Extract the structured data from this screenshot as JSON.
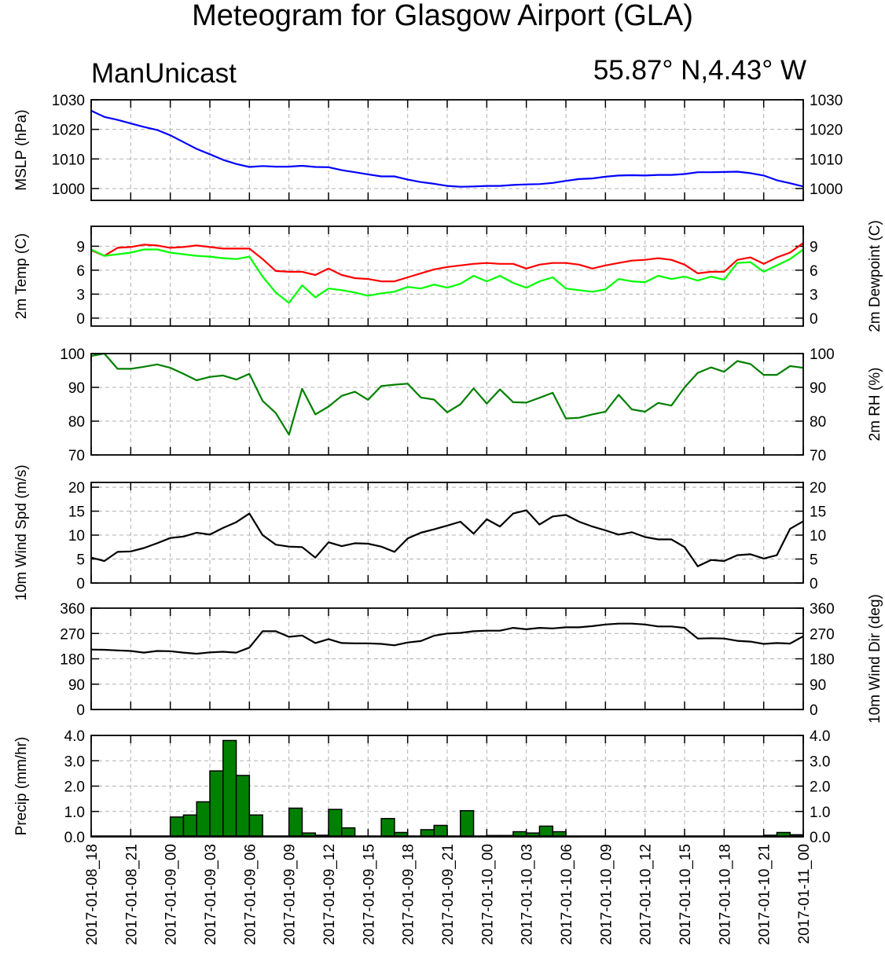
{
  "header": {
    "title": "Meteogram for Glasgow Airport (GLA)",
    "model": "ManUnicast",
    "location": "55.87° N,4.43° W"
  },
  "colors": {
    "mslp": "#0000ff",
    "temperature": "#ff0000",
    "dewpoint": "#00ff00",
    "rh": "#008000",
    "wind_speed": "#000000",
    "wind_dir": "#000000",
    "precip_fill": "#008000",
    "grid": "#b0b0b0"
  },
  "x_axis": {
    "ticks": [
      "2017-01-08_18",
      "2017-01-08_21",
      "2017-01-09_00",
      "2017-01-09_03",
      "2017-01-09_06",
      "2017-01-09_09",
      "2017-01-09_12",
      "2017-01-09_15",
      "2017-01-09_18",
      "2017-01-09_21",
      "2017-01-10_00",
      "2017-01-10_03",
      "2017-01-10_06",
      "2017-01-10_09",
      "2017-01-10_12",
      "2017-01-10_15",
      "2017-01-10_18",
      "2017-01-10_21",
      "2017-01-11_00"
    ],
    "unit": "hours since 2017-01-08_18",
    "range": [
      0,
      54
    ]
  },
  "chart_data": [
    {
      "type": "line",
      "ylabel_left": "MSLP (hPa)",
      "ylabel_right": "",
      "ylim": [
        996,
        1030
      ],
      "yticks": [
        1000,
        1010,
        1020,
        1030
      ],
      "grid": true,
      "x": [
        0,
        1,
        2,
        3,
        4,
        5,
        6,
        7,
        8,
        9,
        10,
        11,
        12,
        13,
        14,
        15,
        16,
        17,
        18,
        19,
        20,
        21,
        22,
        23,
        24,
        25,
        26,
        27,
        28,
        29,
        30,
        31,
        32,
        33,
        34,
        35,
        36,
        37,
        38,
        39,
        40,
        41,
        42,
        43,
        44,
        45,
        46,
        47,
        48,
        49,
        50,
        51,
        52,
        53,
        54
      ],
      "series": [
        {
          "name": "",
          "values": [
            1026.3,
            1024.2,
            1023.2,
            1022.0,
            1020.8,
            1019.8,
            1018.0,
            1015.7,
            1013.4,
            1011.6,
            1009.7,
            1008.3,
            1007.3,
            1007.6,
            1007.4,
            1007.4,
            1007.7,
            1007.3,
            1007.2,
            1006.2,
            1005.5,
            1004.8,
            1004.1,
            1004.1,
            1003.0,
            1002.2,
            1001.6,
            1000.9,
            1000.6,
            1000.7,
            1000.9,
            1000.9,
            1001.2,
            1001.4,
            1001.5,
            1001.9,
            1002.6,
            1003.2,
            1003.4,
            1004.0,
            1004.4,
            1004.5,
            1004.4,
            1004.6,
            1004.6,
            1004.9,
            1005.5,
            1005.5,
            1005.6,
            1005.7,
            1005.2,
            1004.4,
            1002.8,
            1001.8,
            1000.7
          ]
        }
      ]
    },
    {
      "type": "line",
      "ylabel_left": "2m Temp (C)",
      "ylabel_right": "2m Dewpoint (C)",
      "ylim": [
        -1,
        11.5
      ],
      "yticks": [
        0,
        3,
        6,
        9
      ],
      "grid": true,
      "x": [
        0,
        1,
        2,
        3,
        4,
        5,
        6,
        7,
        8,
        9,
        10,
        11,
        12,
        13,
        14,
        15,
        16,
        17,
        18,
        19,
        20,
        21,
        22,
        23,
        24,
        25,
        26,
        27,
        28,
        29,
        30,
        31,
        32,
        33,
        34,
        35,
        36,
        37,
        38,
        39,
        40,
        41,
        42,
        43,
        44,
        45,
        46,
        47,
        48,
        49,
        50,
        51,
        52,
        53,
        54
      ],
      "series": [
        {
          "name": "2m Temp",
          "values": [
            8.5,
            7.8,
            8.8,
            8.9,
            9.2,
            9.1,
            8.8,
            8.9,
            9.1,
            8.9,
            8.7,
            8.7,
            8.7,
            7.4,
            5.9,
            5.8,
            5.8,
            5.4,
            6.2,
            5.4,
            5.0,
            4.9,
            4.6,
            4.6,
            5.1,
            5.6,
            6.1,
            6.4,
            6.6,
            6.8,
            6.9,
            6.8,
            6.8,
            6.2,
            6.7,
            6.9,
            6.9,
            6.7,
            6.2,
            6.6,
            6.9,
            7.2,
            7.3,
            7.5,
            7.3,
            6.7,
            5.6,
            5.8,
            5.8,
            7.3,
            7.6,
            6.8,
            7.6,
            8.2,
            9.4
          ]
        },
        {
          "name": "2m Dewpoint",
          "values": [
            8.6,
            7.8,
            8.0,
            8.2,
            8.6,
            8.6,
            8.2,
            8.0,
            7.8,
            7.7,
            7.5,
            7.4,
            7.7,
            5.2,
            3.2,
            1.9,
            4.1,
            2.6,
            3.7,
            3.5,
            3.2,
            2.8,
            3.1,
            3.3,
            3.9,
            3.7,
            4.2,
            3.8,
            4.3,
            5.3,
            4.6,
            5.3,
            4.4,
            3.8,
            4.6,
            5.1,
            3.7,
            3.5,
            3.3,
            3.6,
            4.9,
            4.6,
            4.5,
            5.3,
            4.9,
            5.2,
            4.7,
            5.2,
            4.8,
            6.9,
            7.0,
            5.8,
            6.6,
            7.4,
            8.6
          ]
        }
      ]
    },
    {
      "type": "line",
      "ylabel_left": "",
      "ylabel_right": "2m RH (%)",
      "ylim": [
        70,
        100
      ],
      "yticks": [
        70,
        80,
        90,
        100
      ],
      "grid": true,
      "x": [
        0,
        1,
        2,
        3,
        4,
        5,
        6,
        7,
        8,
        9,
        10,
        11,
        12,
        13,
        14,
        15,
        16,
        17,
        18,
        19,
        20,
        21,
        22,
        23,
        24,
        25,
        26,
        27,
        28,
        29,
        30,
        31,
        32,
        33,
        34,
        35,
        36,
        37,
        38,
        39,
        40,
        41,
        42,
        43,
        44,
        45,
        46,
        47,
        48,
        49,
        50,
        51,
        52,
        53,
        54
      ],
      "series": [
        {
          "name": "",
          "values": [
            99.3,
            100.0,
            95.5,
            95.5,
            96.1,
            96.8,
            95.8,
            94.0,
            92.1,
            93.1,
            93.5,
            92.3,
            94.0,
            86.0,
            82.4,
            76.0,
            89.6,
            82.0,
            84.3,
            87.5,
            88.7,
            86.3,
            90.4,
            90.8,
            91.1,
            87.0,
            86.4,
            82.6,
            85.0,
            89.7,
            85.2,
            89.4,
            85.6,
            85.5,
            86.9,
            88.4,
            80.8,
            81.0,
            82.0,
            82.8,
            87.8,
            83.5,
            82.8,
            85.4,
            84.6,
            90.0,
            94.3,
            95.9,
            94.6,
            97.8,
            96.9,
            93.7,
            93.7,
            96.3,
            95.8
          ]
        }
      ]
    },
    {
      "type": "line",
      "ylabel_left": "10m Wind Spd (m/s)",
      "ylabel_right": "",
      "ylim": [
        0,
        21
      ],
      "yticks": [
        0,
        5,
        10,
        15,
        20
      ],
      "grid": true,
      "x": [
        0,
        1,
        2,
        3,
        4,
        5,
        6,
        7,
        8,
        9,
        10,
        11,
        12,
        13,
        14,
        15,
        16,
        17,
        18,
        19,
        20,
        21,
        22,
        23,
        24,
        25,
        26,
        27,
        28,
        29,
        30,
        31,
        32,
        33,
        34,
        35,
        36,
        37,
        38,
        39,
        40,
        41,
        42,
        43,
        44,
        45,
        46,
        47,
        48,
        49,
        50,
        51,
        52,
        53,
        54
      ],
      "series": [
        {
          "name": "",
          "values": [
            5.3,
            4.6,
            6.5,
            6.6,
            7.3,
            8.3,
            9.4,
            9.7,
            10.5,
            10.1,
            11.5,
            12.7,
            14.5,
            10.0,
            8.0,
            7.6,
            7.5,
            5.3,
            8.5,
            7.7,
            8.3,
            8.2,
            7.6,
            6.5,
            9.3,
            10.5,
            11.2,
            12.0,
            12.8,
            10.3,
            13.3,
            11.8,
            14.5,
            15.2,
            12.2,
            13.9,
            14.2,
            12.8,
            11.8,
            11.0,
            10.1,
            10.6,
            9.6,
            9.1,
            9.1,
            7.5,
            3.5,
            4.8,
            4.6,
            5.8,
            6.0,
            5.1,
            5.8,
            11.3,
            12.9
          ]
        }
      ]
    },
    {
      "type": "line",
      "ylabel_left": "",
      "ylabel_right": "10m Wind Dir (deg)",
      "ylim": [
        0,
        360
      ],
      "yticks": [
        0,
        90,
        180,
        270,
        360
      ],
      "grid": true,
      "x": [
        0,
        1,
        2,
        3,
        4,
        5,
        6,
        7,
        8,
        9,
        10,
        11,
        12,
        13,
        14,
        15,
        16,
        17,
        18,
        19,
        20,
        21,
        22,
        23,
        24,
        25,
        26,
        27,
        28,
        29,
        30,
        31,
        32,
        33,
        34,
        35,
        36,
        37,
        38,
        39,
        40,
        41,
        42,
        43,
        44,
        45,
        46,
        47,
        48,
        49,
        50,
        51,
        52,
        53,
        54
      ],
      "series": [
        {
          "name": "",
          "values": [
            213,
            212,
            210,
            208,
            202,
            208,
            207,
            202,
            198,
            203,
            205,
            202,
            220,
            278,
            278,
            258,
            263,
            236,
            250,
            236,
            235,
            235,
            233,
            228,
            238,
            243,
            262,
            270,
            272,
            278,
            280,
            280,
            290,
            285,
            290,
            288,
            292,
            292,
            296,
            302,
            305,
            305,
            302,
            295,
            295,
            290,
            252,
            253,
            252,
            244,
            241,
            233,
            236,
            234,
            260
          ]
        }
      ]
    },
    {
      "type": "bar",
      "ylabel_left": "Precip (mm/hr)",
      "ylabel_right": "",
      "ylim": [
        0,
        4
      ],
      "yticks": [
        "0.0",
        "1.0",
        "2.0",
        "3.0",
        "4.0"
      ],
      "grid": true,
      "x": [
        0,
        1,
        2,
        3,
        4,
        5,
        6,
        7,
        8,
        9,
        10,
        11,
        12,
        13,
        14,
        15,
        16,
        17,
        18,
        19,
        20,
        21,
        22,
        23,
        24,
        25,
        26,
        27,
        28,
        29,
        30,
        31,
        32,
        33,
        34,
        35,
        36,
        37,
        38,
        39,
        40,
        41,
        42,
        43,
        44,
        45,
        46,
        47,
        48,
        49,
        50,
        51,
        52,
        53
      ],
      "values": [
        0,
        0,
        0,
        0,
        0,
        0,
        0.78,
        0.86,
        1.38,
        2.6,
        3.8,
        2.42,
        0.86,
        0,
        0,
        1.13,
        0.15,
        0.06,
        1.08,
        0.35,
        0,
        0,
        0.72,
        0.17,
        0,
        0.28,
        0.45,
        0,
        1.03,
        0,
        0.05,
        0.05,
        0.2,
        0.15,
        0.42,
        0.2,
        0.02,
        0,
        0,
        0,
        0,
        0,
        0,
        0,
        0,
        0,
        0,
        0,
        0,
        0,
        0,
        0.06,
        0.17,
        0.08
      ]
    }
  ]
}
